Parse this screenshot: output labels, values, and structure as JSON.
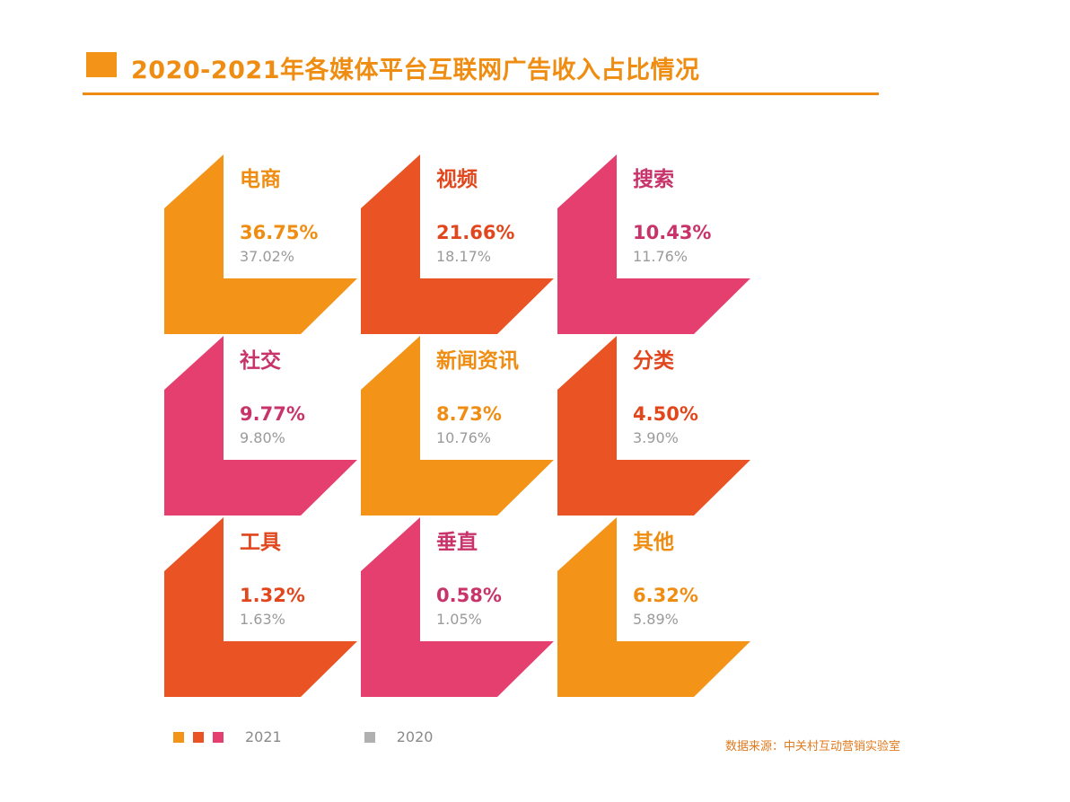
{
  "header": {
    "title": "2020-2021年各媒体平台互联网广告收入占比情况"
  },
  "chart_data": {
    "type": "table",
    "title": "2020-2021年各媒体平台互联网广告收入占比情况",
    "categories": [
      "电商",
      "视频",
      "搜索",
      "社交",
      "新闻资讯",
      "分类",
      "工具",
      "垂直",
      "其他"
    ],
    "series": [
      {
        "name": "2021",
        "values": [
          36.75,
          21.66,
          10.43,
          9.77,
          8.73,
          4.5,
          1.32,
          0.58,
          6.32
        ],
        "labels": [
          "36.75%",
          "21.66%",
          "10.43%",
          "9.77%",
          "8.73%",
          "4.50%",
          "1.32%",
          "0.58%",
          "6.32%"
        ]
      },
      {
        "name": "2020",
        "values": [
          37.02,
          18.17,
          11.76,
          9.8,
          10.76,
          3.9,
          1.63,
          1.05,
          5.89
        ],
        "labels": [
          "37.02%",
          "18.17%",
          "11.76%",
          "9.80%",
          "10.76%",
          "3.90%",
          "1.63%",
          "1.05%",
          "5.89%"
        ]
      }
    ],
    "tile_colors": [
      "#f39318",
      "#ea5324",
      "#e53f6f",
      "#e53f6f",
      "#f39318",
      "#ea5324",
      "#ea5324",
      "#e53f6f",
      "#f39318"
    ],
    "value_colors": [
      "#ef8d12",
      "#e2461d",
      "#c8346a",
      "#c8346a",
      "#ef8d12",
      "#e2461d",
      "#e2461d",
      "#c8346a",
      "#ef8d12"
    ],
    "legend": [
      {
        "label": "2021",
        "colors": [
          "#f39318",
          "#ea5324",
          "#e53f6f"
        ]
      },
      {
        "label": "2020",
        "colors": [
          "#b0b0b0"
        ]
      }
    ],
    "legend_position": "bottom-left",
    "prior_value_color": "#9a9a9a"
  },
  "source": "数据来源：中关村互动营销实验室"
}
